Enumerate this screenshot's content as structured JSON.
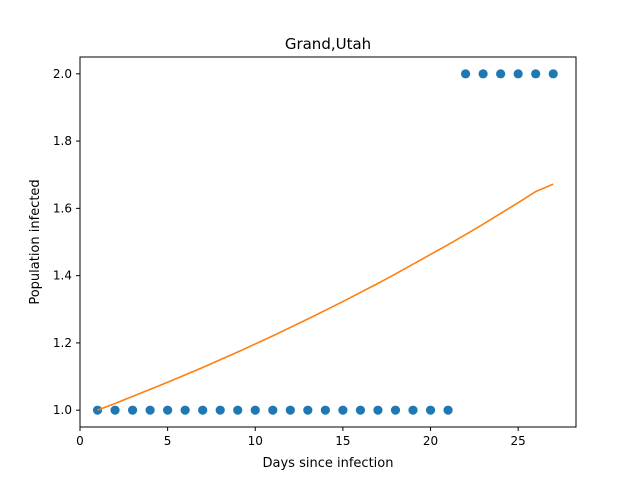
{
  "chart_data": {
    "type": "scatter",
    "title": "Grand,Utah",
    "xlabel": "Days since infection",
    "ylabel": "Population infected",
    "xlim": [
      0,
      28.3
    ],
    "ylim": [
      0.95,
      2.05
    ],
    "xticks": [
      0,
      5,
      10,
      15,
      20,
      25
    ],
    "yticks": [
      1.0,
      1.2,
      1.4,
      1.6,
      1.8,
      2.0
    ],
    "ytick_labels": [
      "1.0",
      "1.2",
      "1.4",
      "1.6",
      "1.8",
      "2.0"
    ],
    "grid": false,
    "series": [
      {
        "kind": "scatter",
        "color": "#1f77b4",
        "x": [
          1,
          2,
          3,
          4,
          5,
          6,
          7,
          8,
          9,
          10,
          11,
          12,
          13,
          14,
          15,
          16,
          17,
          18,
          19,
          20,
          21,
          22,
          23,
          24,
          25,
          26,
          27
        ],
        "y": [
          1,
          1,
          1,
          1,
          1,
          1,
          1,
          1,
          1,
          1,
          1,
          1,
          1,
          1,
          1,
          1,
          1,
          1,
          1,
          1,
          1,
          2,
          2,
          2,
          2,
          2,
          2
        ]
      },
      {
        "kind": "line",
        "color": "#ff7f0e",
        "x": [
          1,
          2,
          3,
          4,
          5,
          6,
          7,
          8,
          9,
          10,
          11,
          12,
          13,
          14,
          15,
          16,
          17,
          18,
          19,
          20,
          21,
          22,
          23,
          24,
          25,
          26,
          27
        ],
        "y": [
          1.0,
          1.02,
          1.041,
          1.062,
          1.083,
          1.105,
          1.127,
          1.15,
          1.173,
          1.197,
          1.221,
          1.246,
          1.271,
          1.297,
          1.323,
          1.35,
          1.377,
          1.405,
          1.434,
          1.463,
          1.492,
          1.522,
          1.553,
          1.585,
          1.617,
          1.65,
          1.672
        ]
      }
    ]
  }
}
